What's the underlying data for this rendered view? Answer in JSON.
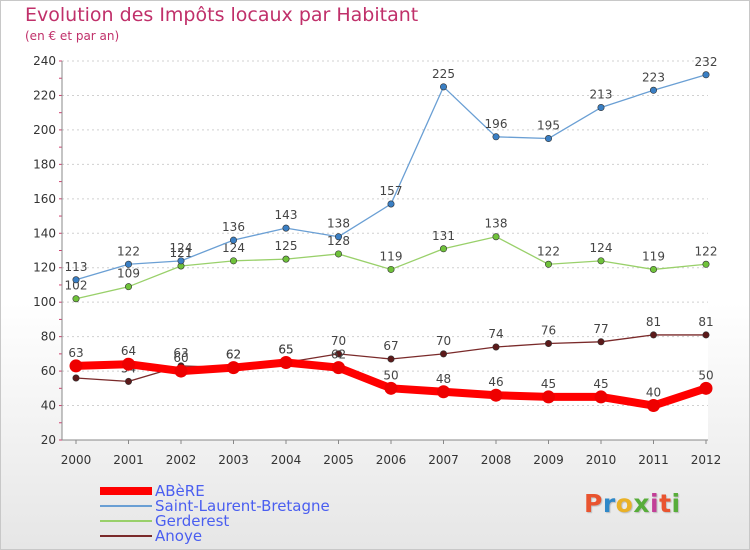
{
  "title": "Evolution des Impôts locaux par Habitant",
  "subtitle": "(en € et par an)",
  "logo_text": "Proxiti",
  "logo_colors": [
    "#e9542f",
    "#2f88c8",
    "#eab126",
    "#58ad3a",
    "#c23f97",
    "#e9542f",
    "#58ad3a"
  ],
  "chart_data": {
    "type": "line",
    "title": "Evolution des Impôts locaux par Habitant",
    "subtitle": "(en € et par an)",
    "xlabel": "",
    "ylabel": "",
    "x": [
      "2000",
      "2001",
      "2002",
      "2003",
      "2004",
      "2005",
      "2006",
      "2007",
      "2008",
      "2009",
      "2010",
      "2011",
      "2012"
    ],
    "ylim": [
      20,
      240
    ],
    "yticks": [
      20,
      40,
      60,
      80,
      100,
      120,
      140,
      160,
      180,
      200,
      220,
      240
    ],
    "grid": "horizontal dashed",
    "legend_placement": "bottom-left",
    "series": [
      {
        "name": "Anoye",
        "color": "#7a2a2a",
        "marker": "#5c1a1a",
        "values": [
          56,
          54,
          63,
          62,
          65,
          70,
          67,
          70,
          74,
          76,
          77,
          81,
          81
        ],
        "labels": [
          "",
          "54",
          "63",
          "62",
          "65",
          "70",
          "67",
          "70",
          "74",
          "76",
          "77",
          "81",
          "81"
        ]
      },
      {
        "name": "Gerderest",
        "color": "#99d06a",
        "marker": "#6fc23a",
        "values": [
          102,
          109,
          121,
          124,
          125,
          128,
          119,
          131,
          138,
          122,
          124,
          119,
          122
        ],
        "labels": [
          "102",
          "109",
          "121",
          "124",
          "125",
          "128",
          "119",
          "131",
          "138",
          "122",
          "124",
          "119",
          "122"
        ]
      },
      {
        "name": "Saint-Laurent-Bretagne",
        "color": "#6a9fd4",
        "marker": "#3a7fc4",
        "values": [
          113,
          122,
          124,
          136,
          143,
          138,
          157,
          225,
          196,
          195,
          213,
          223,
          232
        ],
        "labels": [
          "113",
          "122",
          "124",
          "136",
          "143",
          "138",
          "157",
          "225",
          "196",
          "195",
          "213",
          "223",
          "232"
        ]
      },
      {
        "name": "ABèRE",
        "color": "#ff0000",
        "marker": "#ee0000",
        "values": [
          63,
          64,
          60,
          62,
          65,
          62,
          50,
          48,
          46,
          45,
          45,
          40,
          50
        ],
        "labels": [
          "63",
          "64",
          "60",
          "62",
          "65",
          "62",
          "50",
          "48",
          "46",
          "45",
          "45",
          "40",
          "50"
        ]
      }
    ],
    "legend_order": [
      "ABèRE",
      "Saint-Laurent-Bretagne",
      "Gerderest",
      "Anoye"
    ]
  }
}
